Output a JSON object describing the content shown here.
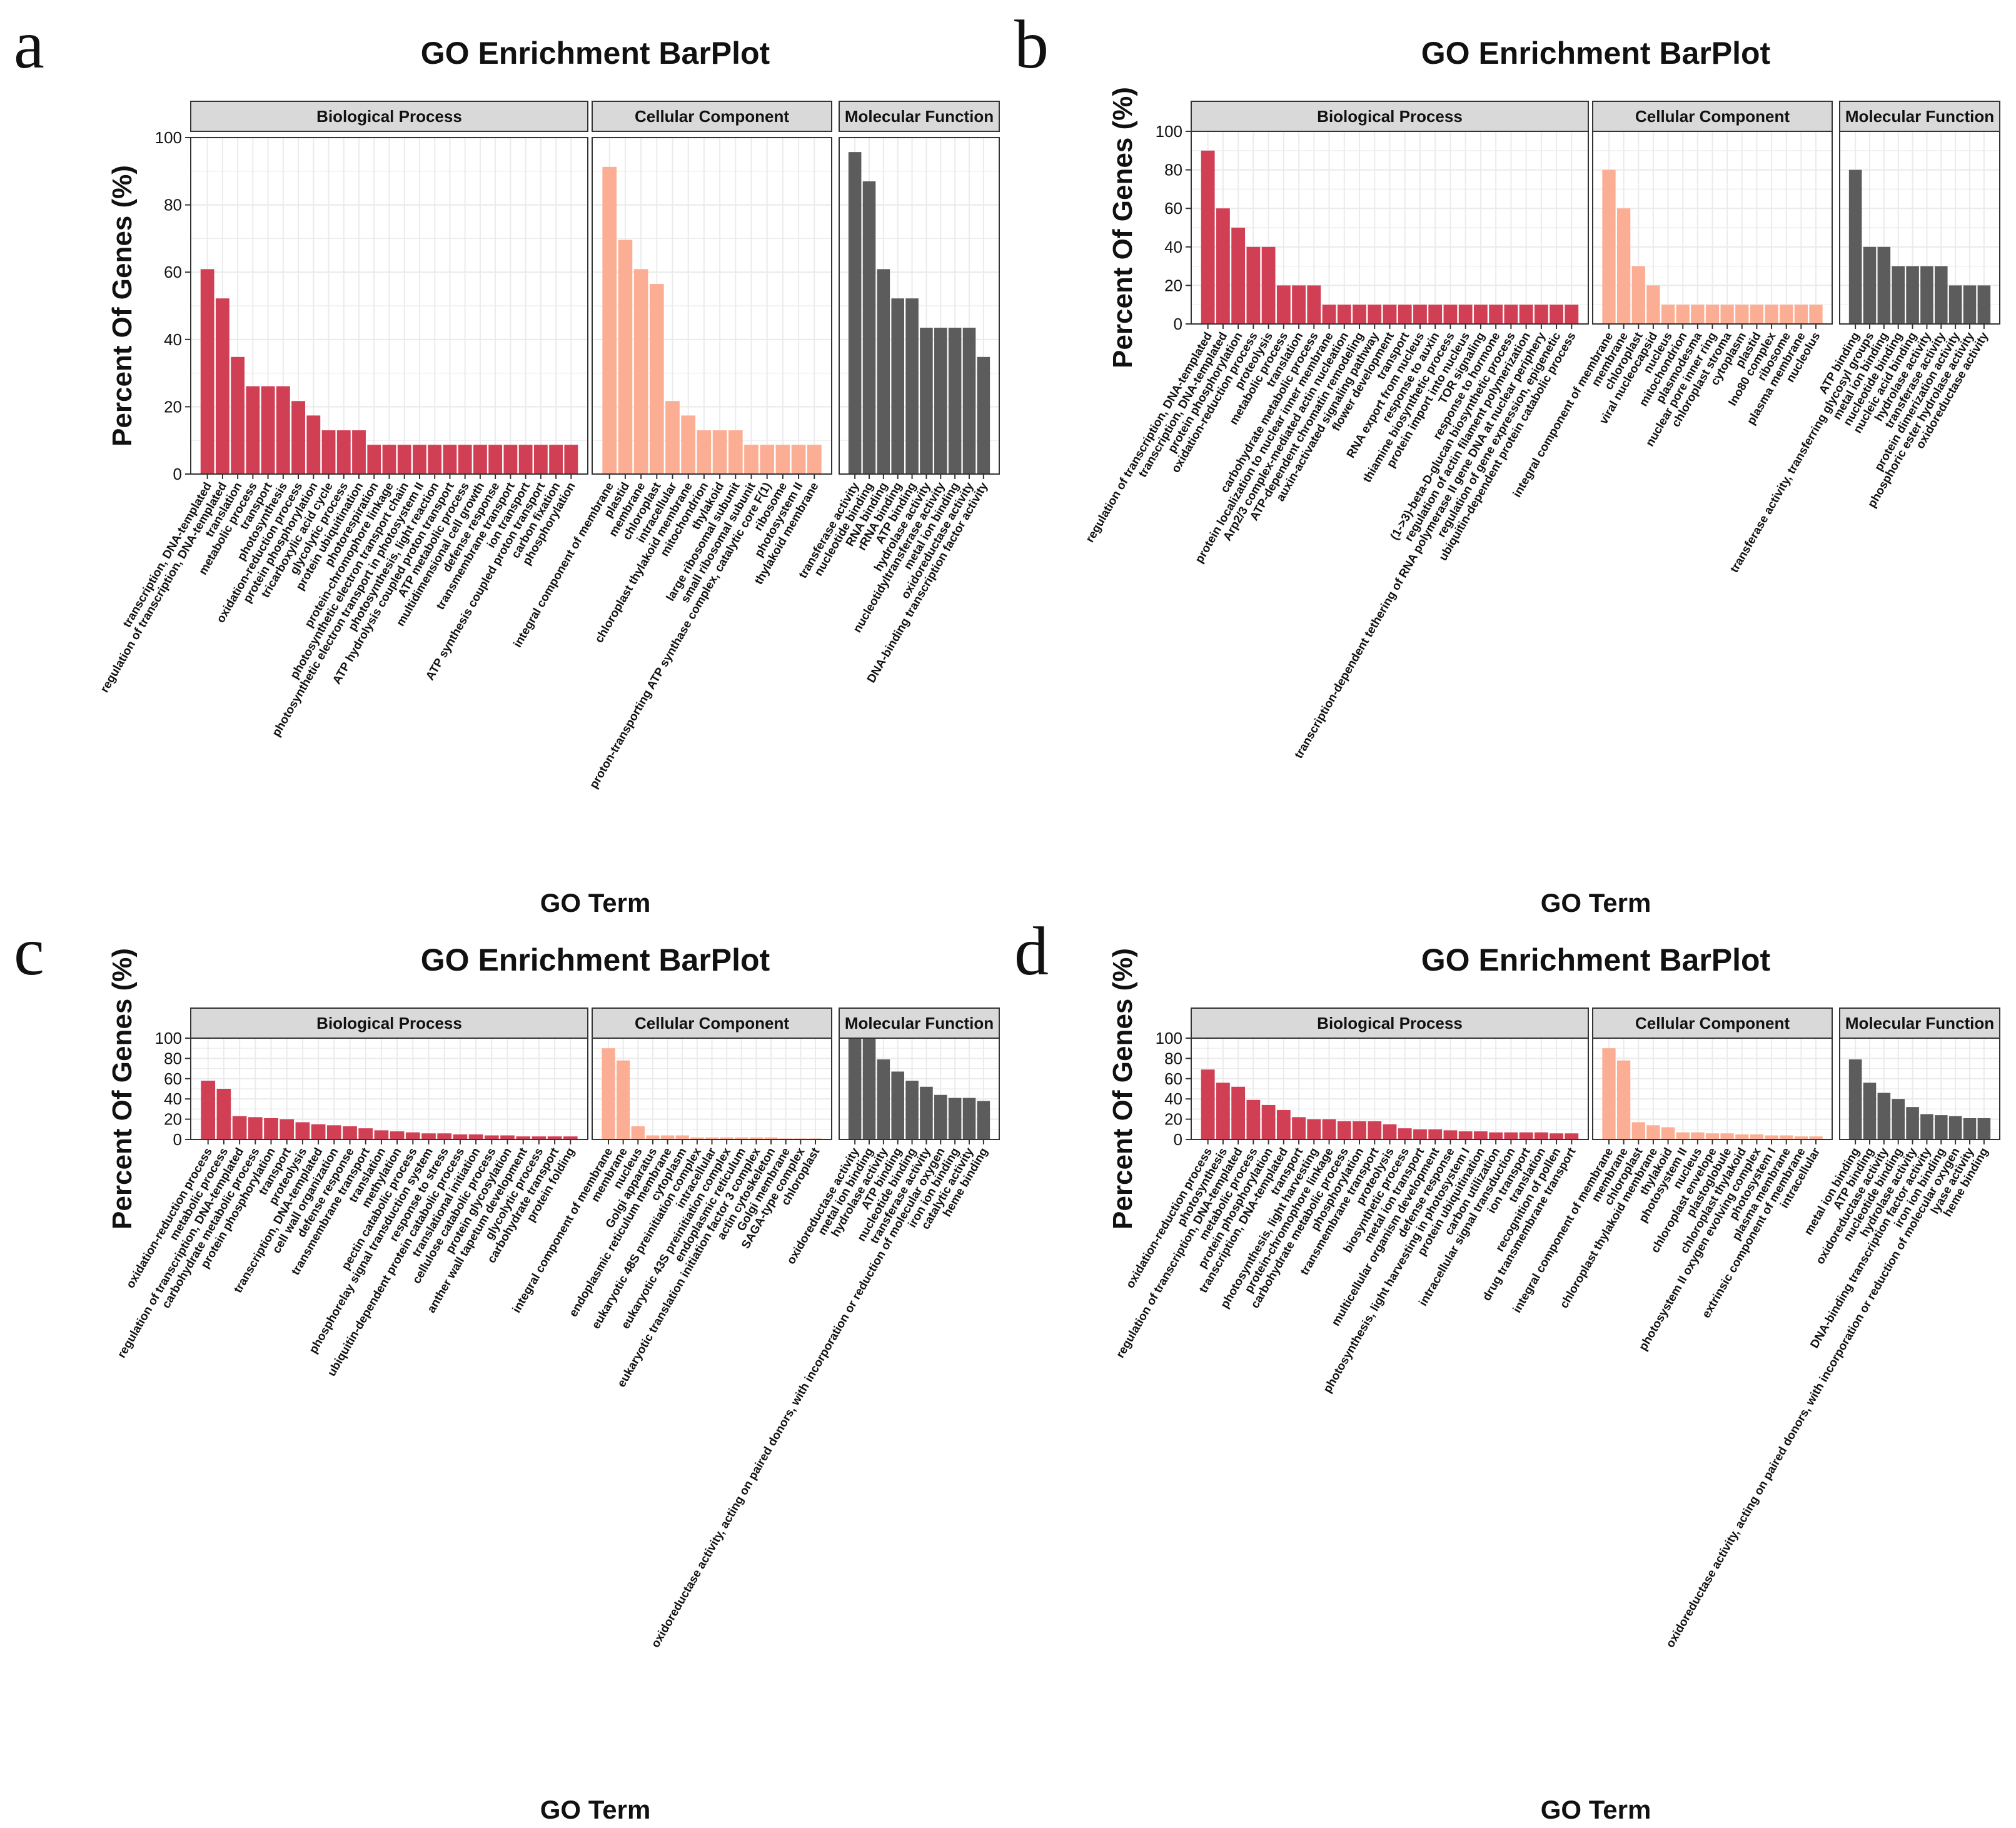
{
  "colors": {
    "Biological Process": "#d13f55",
    "Cellular Component": "#fbae93",
    "Molecular Function": "#5c5c5c",
    "strip_bg": "#d9d9d9",
    "grid": "#ebebeb",
    "panel_border": "#333333"
  },
  "chart_data": [
    {
      "type": "bar",
      "panel_label": "a",
      "title": "GO Enrichment BarPlot",
      "xlabel": "GO Term",
      "ylabel": "Percent Of Genes (%)",
      "ylim": [
        0,
        100
      ],
      "yticks": [
        0,
        20,
        40,
        60,
        80,
        100
      ],
      "grid": true,
      "facets": [
        {
          "name": "Biological Process",
          "categories": [
            "transcription, DNA-templated",
            "regulation of transcription, DNA-templated",
            "translation",
            "metabolic process",
            "transport",
            "photosynthesis",
            "oxidation-reduction process",
            "protein phosphorylation",
            "tricarboxylic acid cycle",
            "glycolytic process",
            "protein ubiquitination",
            "photorespiration",
            "protein-chromophore linkage",
            "photosynthetic electron transport chain",
            "photosynthetic electron transport in photosystem II",
            "photosynthesis, light reaction",
            "ATP hydrolysis coupled proton transport",
            "ATP metabolic process",
            "multidimensional cell growth",
            "defense response",
            "transmembrane transport",
            "ion transport",
            "ATP synthesis coupled proton transport",
            "carbon fixation",
            "phosphorylation"
          ],
          "values": [
            60.9,
            52.2,
            34.8,
            26.1,
            26.1,
            26.1,
            21.7,
            17.4,
            13.0,
            13.0,
            13.0,
            8.7,
            8.7,
            8.7,
            8.7,
            8.7,
            8.7,
            8.7,
            8.7,
            8.7,
            8.7,
            8.7,
            8.7,
            8.7,
            8.7
          ]
        },
        {
          "name": "Cellular Component",
          "categories": [
            "integral component of membrane",
            "plastid",
            "membrane",
            "chloroplast",
            "intracellular",
            "chloroplast thylakoid membrane",
            "mitochondrion",
            "thylakoid",
            "large ribosomal subunit",
            "small ribosomal subunit",
            "proton-transporting ATP synthase complex, catalytic core F(1)",
            "ribosome",
            "photosystem II",
            "thylakoid membrane"
          ],
          "values": [
            91.3,
            69.6,
            60.9,
            56.5,
            21.7,
            17.4,
            13.0,
            13.0,
            13.0,
            8.7,
            8.7,
            8.7,
            8.7,
            8.7
          ]
        },
        {
          "name": "Molecular Function",
          "categories": [
            "transferase activity",
            "nucleotide binding",
            "RNA binding",
            "rRNA binding",
            "ATP binding",
            "hydrolase activity",
            "nucleotidyltransferase activity",
            "metal ion binding",
            "oxidoreductase activity",
            "DNA-binding transcription factor activity"
          ],
          "values": [
            95.7,
            87.0,
            60.9,
            52.2,
            52.2,
            43.5,
            43.5,
            43.5,
            43.5,
            34.8
          ]
        }
      ]
    },
    {
      "type": "bar",
      "panel_label": "b",
      "title": "GO Enrichment BarPlot",
      "xlabel": "GO Term",
      "ylabel": "Percent Of Genes (%)",
      "ylim": [
        0,
        100
      ],
      "yticks": [
        0,
        20,
        40,
        60,
        80,
        100
      ],
      "grid": true,
      "facets": [
        {
          "name": "Biological Process",
          "categories": [
            "regulation of transcription, DNA-templated",
            "transcription, DNA-templated",
            "protein phosphorylation",
            "oxidation-reduction process",
            "proteolysis",
            "metabolic process",
            "translation",
            "carbohydrate metabolic process",
            "protein localization to nuclear inner membrane",
            "Arp2/3 complex-mediated actin nucleation",
            "ATP-dependent chromatin remodeling",
            "auxin-activated signaling pathway",
            "flower development",
            "transport",
            "RNA export from nucleus",
            "response to auxin",
            "thiamine biosynthetic process",
            "protein import into nucleus",
            "TOR signaling",
            "response to hormone",
            "(1->3)-beta-D-glucan biosynthetic process",
            "regulation of actin filament polymerization",
            "transcription-dependent tethering of RNA polymerase II gene DNA at nuclear periphery",
            "regulation of gene expression, epigenetic",
            "ubiquitin-dependent protein catabolic process"
          ],
          "values": [
            90,
            60,
            50,
            40,
            40,
            20,
            20,
            20,
            10,
            10,
            10,
            10,
            10,
            10,
            10,
            10,
            10,
            10,
            10,
            10,
            10,
            10,
            10,
            10,
            10
          ]
        },
        {
          "name": "Cellular Component",
          "categories": [
            "integral component of membrane",
            "membrane",
            "chloroplast",
            "viral nucleocapsid",
            "nucleus",
            "mitochondrion",
            "plasmodesma",
            "nuclear pore inner ring",
            "chloroplast stroma",
            "cytoplasm",
            "plastid",
            "Ino80 complex",
            "ribosome",
            "plasma membrane",
            "nucleolus"
          ],
          "values": [
            80,
            60,
            30,
            20,
            10,
            10,
            10,
            10,
            10,
            10,
            10,
            10,
            10,
            10,
            10
          ]
        },
        {
          "name": "Molecular Function",
          "categories": [
            "ATP binding",
            "transferase activity, transferring glycosyl groups",
            "metal ion binding",
            "nucleotide binding",
            "nucleic acid binding",
            "hydrolase activity",
            "transferase activity",
            "protein dimerization activity",
            "phosphoric ester hydrolase activity",
            "oxidoreductase activity"
          ],
          "values": [
            80,
            40,
            40,
            30,
            30,
            30,
            30,
            20,
            20,
            20
          ]
        }
      ]
    },
    {
      "type": "bar",
      "panel_label": "c",
      "title": "GO Enrichment BarPlot",
      "xlabel": "GO Term",
      "ylabel": "Percent Of Genes (%)",
      "ylim": [
        0,
        100
      ],
      "yticks": [
        0,
        20,
        40,
        60,
        80,
        100
      ],
      "grid": true,
      "facets": [
        {
          "name": "Biological Process",
          "categories": [
            "oxidation-reduction process",
            "metabolic process",
            "regulation of transcription, DNA-templated",
            "carbohydrate metabolic process",
            "protein phosphorylation",
            "transport",
            "proteolysis",
            "transcription, DNA-templated",
            "cell wall organization",
            "defense response",
            "transmembrane transport",
            "translation",
            "methylation",
            "pectin catabolic process",
            "phosphorelay signal transduction system",
            "response to stress",
            "ubiquitin-dependent protein catabolic process",
            "translational initiation",
            "cellulose catabolic process",
            "protein glycosylation",
            "anther wall tapetum development",
            "glycolytic process",
            "carbohydrate transport",
            "protein folding"
          ],
          "values": [
            58,
            50,
            23,
            22,
            21,
            20,
            17,
            15,
            14,
            13,
            11,
            9,
            8,
            7,
            6,
            6,
            5,
            5,
            4,
            4,
            3,
            3,
            3,
            3
          ]
        },
        {
          "name": "Cellular Component",
          "categories": [
            "integral component of membrane",
            "membrane",
            "nucleus",
            "Golgi apparatus",
            "endoplasmic reticulum membrane",
            "cytoplasm",
            "eukaryotic 48S preinitiation complex",
            "intracellular",
            "eukaryotic 43S preinitiation complex",
            "endoplasmic reticulum",
            "eukaryotic translation initiation factor 3 complex",
            "actin cytoskeleton",
            "Golgi membrane",
            "SAGA-type complex",
            "chloroplast"
          ],
          "values": [
            90,
            78,
            13,
            4,
            4,
            4,
            2,
            2,
            2,
            2,
            2,
            2,
            1,
            1,
            1
          ]
        },
        {
          "name": "Molecular Function",
          "categories": [
            "oxidoreductase activity",
            "metal ion binding",
            "hydrolase activity",
            "ATP binding",
            "nucleotide binding",
            "transferase activity",
            "oxidoreductase activity, acting on paired donors, with incorporation or reduction of molecular oxygen",
            "iron ion binding",
            "catalytic activity",
            "heme binding"
          ],
          "values": [
            100,
            100,
            79,
            67,
            58,
            52,
            44,
            41,
            41,
            38
          ]
        }
      ]
    },
    {
      "type": "bar",
      "panel_label": "d",
      "title": "GO Enrichment BarPlot",
      "xlabel": "GO Term",
      "ylabel": "Percent Of Genes (%)",
      "ylim": [
        0,
        100
      ],
      "yticks": [
        0,
        20,
        40,
        60,
        80,
        100
      ],
      "grid": true,
      "facets": [
        {
          "name": "Biological Process",
          "categories": [
            "oxidation-reduction process",
            "photosynthesis",
            "regulation of transcription, DNA-templated",
            "metabolic process",
            "protein phosphorylation",
            "transcription, DNA-templated",
            "transport",
            "photosynthesis, light harvesting",
            "protein-chromophore linkage",
            "carbohydrate metabolic process",
            "phosphorylation",
            "transmembrane transport",
            "proteolysis",
            "biosynthetic process",
            "metal ion transport",
            "multicellular organism development",
            "defense response",
            "photosynthesis, light harvesting in photosystem I",
            "protein ubiquitination",
            "carbon utilization",
            "intracellular signal transduction",
            "ion transport",
            "translation",
            "recognition of pollen",
            "drug transmembrane transport"
          ],
          "values": [
            69,
            56,
            52,
            39,
            34,
            29,
            22,
            20,
            20,
            18,
            18,
            18,
            15,
            11,
            10,
            10,
            9,
            8,
            8,
            7,
            7,
            7,
            7,
            6,
            6
          ]
        },
        {
          "name": "Cellular Component",
          "categories": [
            "integral component of membrane",
            "membrane",
            "chloroplast",
            "chloroplast thylakoid membrane",
            "thylakoid",
            "photosystem II",
            "nucleus",
            "chloroplast envelope",
            "plastoglobule",
            "chloroplast thylakoid",
            "photosystem II oxygen evolving complex",
            "photosystem I",
            "plasma membrane",
            "extrinsic component of membrane",
            "intracellular"
          ],
          "values": [
            90,
            78,
            17,
            14,
            12,
            7,
            7,
            6,
            6,
            5,
            5,
            4,
            4,
            3,
            3
          ]
        },
        {
          "name": "Molecular Function",
          "categories": [
            "metal ion binding",
            "ATP binding",
            "oxidoreductase activity",
            "nucleotide binding",
            "hydrolase activity",
            "DNA-binding transcription factor activity",
            "iron ion binding",
            "oxidoreductase activity, acting on paired donors, with incorporation or reduction of molecular oxygen",
            "lyase activity",
            "heme binding"
          ],
          "values": [
            79,
            56,
            46,
            40,
            32,
            25,
            24,
            23,
            21,
            21
          ]
        }
      ]
    }
  ]
}
